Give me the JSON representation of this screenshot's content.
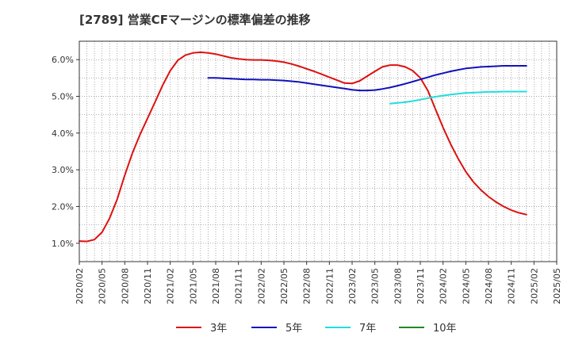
{
  "chart_data": {
    "type": "line",
    "title": "[2789]  営業CFマージンの標準偏差の推移",
    "xlabel": "",
    "ylabel": "",
    "ylim": [
      0.5,
      6.5
    ],
    "yticks": [
      1.0,
      2.0,
      3.0,
      4.0,
      5.0,
      6.0
    ],
    "ytick_labels": [
      "1.0%",
      "2.0%",
      "3.0%",
      "4.0%",
      "5.0%",
      "6.0%"
    ],
    "xlim": [
      "2020-02",
      "2025-05"
    ],
    "xtick_labels": [
      "2020/02",
      "2020/05",
      "2020/08",
      "2020/11",
      "2021/02",
      "2021/05",
      "2021/08",
      "2021/11",
      "2022/02",
      "2022/05",
      "2022/08",
      "2022/11",
      "2023/02",
      "2023/05",
      "2023/08",
      "2023/11",
      "2024/02",
      "2024/05",
      "2024/08",
      "2024/11",
      "2025/02",
      "2025/05"
    ],
    "grid": true,
    "legend_position": "bottom",
    "series": [
      {
        "name": "3年",
        "color": "#dd1111",
        "points": [
          [
            "2020-02",
            1.06
          ],
          [
            "2020-03",
            1.05
          ],
          [
            "2020-04",
            1.1
          ],
          [
            "2020-05",
            1.3
          ],
          [
            "2020-06",
            1.68
          ],
          [
            "2020-07",
            2.2
          ],
          [
            "2020-08",
            2.85
          ],
          [
            "2020-09",
            3.45
          ],
          [
            "2020-10",
            3.95
          ],
          [
            "2020-11",
            4.4
          ],
          [
            "2020-12",
            4.85
          ],
          [
            "2021-01",
            5.3
          ],
          [
            "2021-02",
            5.7
          ],
          [
            "2021-03",
            5.98
          ],
          [
            "2021-04",
            6.12
          ],
          [
            "2021-05",
            6.18
          ],
          [
            "2021-06",
            6.2
          ],
          [
            "2021-07",
            6.18
          ],
          [
            "2021-08",
            6.15
          ],
          [
            "2021-09",
            6.1
          ],
          [
            "2021-10",
            6.05
          ],
          [
            "2021-11",
            6.02
          ],
          [
            "2021-12",
            6.0
          ],
          [
            "2022-01",
            5.99
          ],
          [
            "2022-02",
            5.99
          ],
          [
            "2022-03",
            5.98
          ],
          [
            "2022-04",
            5.96
          ],
          [
            "2022-05",
            5.93
          ],
          [
            "2022-06",
            5.88
          ],
          [
            "2022-07",
            5.82
          ],
          [
            "2022-08",
            5.75
          ],
          [
            "2022-09",
            5.68
          ],
          [
            "2022-10",
            5.6
          ],
          [
            "2022-11",
            5.52
          ],
          [
            "2022-12",
            5.44
          ],
          [
            "2023-01",
            5.36
          ],
          [
            "2023-02",
            5.35
          ],
          [
            "2023-03",
            5.42
          ],
          [
            "2023-04",
            5.55
          ],
          [
            "2023-05",
            5.68
          ],
          [
            "2023-06",
            5.8
          ],
          [
            "2023-07",
            5.85
          ],
          [
            "2023-08",
            5.85
          ],
          [
            "2023-09",
            5.8
          ],
          [
            "2023-10",
            5.7
          ],
          [
            "2023-11",
            5.5
          ],
          [
            "2023-12",
            5.15
          ],
          [
            "2024-01",
            4.65
          ],
          [
            "2024-02",
            4.15
          ],
          [
            "2024-03",
            3.7
          ],
          [
            "2024-04",
            3.3
          ],
          [
            "2024-05",
            2.95
          ],
          [
            "2024-06",
            2.67
          ],
          [
            "2024-07",
            2.45
          ],
          [
            "2024-08",
            2.27
          ],
          [
            "2024-09",
            2.12
          ],
          [
            "2024-10",
            2.0
          ],
          [
            "2024-11",
            1.9
          ],
          [
            "2024-12",
            1.83
          ],
          [
            "2025-01",
            1.78
          ]
        ]
      },
      {
        "name": "5年",
        "color": "#1111bb",
        "points": [
          [
            "2021-07",
            5.5
          ],
          [
            "2021-08",
            5.5
          ],
          [
            "2021-09",
            5.49
          ],
          [
            "2021-10",
            5.48
          ],
          [
            "2021-11",
            5.47
          ],
          [
            "2021-12",
            5.46
          ],
          [
            "2022-01",
            5.46
          ],
          [
            "2022-02",
            5.45
          ],
          [
            "2022-03",
            5.45
          ],
          [
            "2022-04",
            5.44
          ],
          [
            "2022-05",
            5.43
          ],
          [
            "2022-06",
            5.41
          ],
          [
            "2022-07",
            5.39
          ],
          [
            "2022-08",
            5.36
          ],
          [
            "2022-09",
            5.33
          ],
          [
            "2022-10",
            5.3
          ],
          [
            "2022-11",
            5.27
          ],
          [
            "2022-12",
            5.24
          ],
          [
            "2023-01",
            5.21
          ],
          [
            "2023-02",
            5.18
          ],
          [
            "2023-03",
            5.16
          ],
          [
            "2023-04",
            5.16
          ],
          [
            "2023-05",
            5.17
          ],
          [
            "2023-06",
            5.2
          ],
          [
            "2023-07",
            5.24
          ],
          [
            "2023-08",
            5.29
          ],
          [
            "2023-09",
            5.34
          ],
          [
            "2023-10",
            5.4
          ],
          [
            "2023-11",
            5.46
          ],
          [
            "2023-12",
            5.52
          ],
          [
            "2024-01",
            5.58
          ],
          [
            "2024-02",
            5.63
          ],
          [
            "2024-03",
            5.68
          ],
          [
            "2024-04",
            5.72
          ],
          [
            "2024-05",
            5.76
          ],
          [
            "2024-06",
            5.78
          ],
          [
            "2024-07",
            5.8
          ],
          [
            "2024-08",
            5.81
          ],
          [
            "2024-09",
            5.82
          ],
          [
            "2024-10",
            5.83
          ],
          [
            "2024-11",
            5.83
          ],
          [
            "2024-12",
            5.83
          ],
          [
            "2025-01",
            5.83
          ]
        ]
      },
      {
        "name": "7年",
        "color": "#22dddd",
        "points": [
          [
            "2023-07",
            4.8
          ],
          [
            "2023-08",
            4.82
          ],
          [
            "2023-09",
            4.84
          ],
          [
            "2023-10",
            4.87
          ],
          [
            "2023-11",
            4.91
          ],
          [
            "2023-12",
            4.95
          ],
          [
            "2024-01",
            4.99
          ],
          [
            "2024-02",
            5.02
          ],
          [
            "2024-03",
            5.05
          ],
          [
            "2024-04",
            5.07
          ],
          [
            "2024-05",
            5.09
          ],
          [
            "2024-06",
            5.1
          ],
          [
            "2024-07",
            5.11
          ],
          [
            "2024-08",
            5.12
          ],
          [
            "2024-09",
            5.12
          ],
          [
            "2024-10",
            5.13
          ],
          [
            "2024-11",
            5.13
          ],
          [
            "2024-12",
            5.13
          ],
          [
            "2025-01",
            5.13
          ]
        ]
      },
      {
        "name": "10年",
        "color": "#228822",
        "points": []
      }
    ]
  }
}
